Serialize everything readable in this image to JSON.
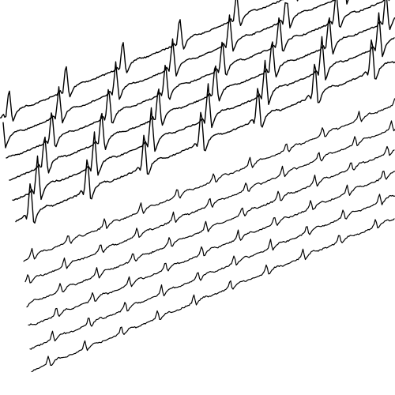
{
  "figure": {
    "kind": "multichannel-waveform-tracing",
    "background_color": "#ffffff",
    "trace_color": "#000000",
    "channel_count": 12,
    "channels": [
      {
        "group": "upper",
        "pattern": "large-complex"
      },
      {
        "group": "upper",
        "pattern": "large-complex"
      },
      {
        "group": "upper",
        "pattern": "large-complex"
      },
      {
        "group": "upper",
        "pattern": "large-complex"
      },
      {
        "group": "upper",
        "pattern": "large-complex"
      },
      {
        "group": "upper",
        "pattern": "large-complex"
      },
      {
        "group": "lower",
        "pattern": "small-complex"
      },
      {
        "group": "lower",
        "pattern": "small-complex"
      },
      {
        "group": "lower",
        "pattern": "small-complex"
      },
      {
        "group": "lower",
        "pattern": "small-complex"
      },
      {
        "group": "lower",
        "pattern": "small-complex"
      },
      {
        "group": "lower",
        "pattern": "small-complex"
      }
    ]
  }
}
